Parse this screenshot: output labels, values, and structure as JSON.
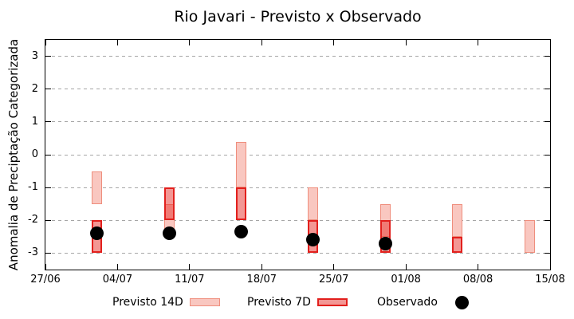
{
  "title": "Rio Javari - Previsto x Observado",
  "chart_data": {
    "type": "bar",
    "subtype": "forecast-range-bars-with-observed-points",
    "title": "Rio Javari - Previsto x Observado",
    "ylabel": "Anomalia de Preciptação Categorizada",
    "xlabel": "",
    "ylim": [
      -3.5,
      3.5
    ],
    "yticks": [
      {
        "value": 3,
        "label": "3"
      },
      {
        "value": 2,
        "label": "2"
      },
      {
        "value": 1,
        "label": "1"
      },
      {
        "value": 0,
        "label": "0"
      },
      {
        "value": -1,
        "label": "-1"
      },
      {
        "value": -2,
        "label": "-2"
      },
      {
        "value": -3,
        "label": "-3"
      }
    ],
    "x_axis": {
      "span_days": 49,
      "ticks": [
        {
          "day": 0,
          "label": "27/06"
        },
        {
          "day": 7,
          "label": "04/07"
        },
        {
          "day": 14,
          "label": "11/07"
        },
        {
          "day": 21,
          "label": "18/07"
        },
        {
          "day": 28,
          "label": "25/07"
        },
        {
          "day": 35,
          "label": "01/08"
        },
        {
          "day": 42,
          "label": "08/08"
        },
        {
          "day": 49,
          "label": "15/08"
        }
      ]
    },
    "grid": {
      "horizontal": true,
      "vertical": false,
      "style": "dotted-gray"
    },
    "legend_position": "bottom",
    "colors": {
      "previsto_14d_fill": "#F9C7C0",
      "previsto_14d_border": "#EF8E7D",
      "previsto_7d_fill": "rgba(231,48,41,0.5)",
      "previsto_7d_border": "#E2201D",
      "observado": "#000000"
    },
    "series": [
      {
        "name": "Previsto 14D",
        "type": "range-bar",
        "points": [
          {
            "date": "02/07",
            "day": 5,
            "high": -0.5,
            "low": -1.5
          },
          {
            "date": "09/07",
            "day": 12,
            "high": -1.5,
            "low": -2.5
          },
          {
            "date": "16/07",
            "day": 19,
            "high": 0.4,
            "low": -1.0
          },
          {
            "date": "23/07",
            "day": 26,
            "high": -1.0,
            "low": -2.0
          },
          {
            "date": "30/07",
            "day": 33,
            "high": -1.5,
            "low": -2.5
          },
          {
            "date": "06/08",
            "day": 40,
            "high": -1.5,
            "low": -2.5
          },
          {
            "date": "13/08",
            "day": 47,
            "high": -2.0,
            "low": -3.0
          }
        ]
      },
      {
        "name": "Previsto 7D",
        "type": "range-bar",
        "points": [
          {
            "date": "02/07",
            "day": 5,
            "high": -2.0,
            "low": -3.0
          },
          {
            "date": "09/07",
            "day": 12,
            "high": -1.0,
            "low": -2.0
          },
          {
            "date": "16/07",
            "day": 19,
            "high": -1.0,
            "low": -2.0
          },
          {
            "date": "23/07",
            "day": 26,
            "high": -2.0,
            "low": -3.0
          },
          {
            "date": "30/07",
            "day": 33,
            "high": -2.0,
            "low": -3.0
          },
          {
            "date": "06/08",
            "day": 40,
            "high": -2.5,
            "low": -3.0
          }
        ]
      },
      {
        "name": "Observado",
        "type": "scatter",
        "points": [
          {
            "date": "02/07",
            "day": 5,
            "value": -2.4
          },
          {
            "date": "09/07",
            "day": 12,
            "value": -2.4
          },
          {
            "date": "16/07",
            "day": 19,
            "value": -2.35
          },
          {
            "date": "23/07",
            "day": 26,
            "value": -2.6
          },
          {
            "date": "30/07",
            "day": 33,
            "value": -2.7
          }
        ]
      }
    ]
  }
}
